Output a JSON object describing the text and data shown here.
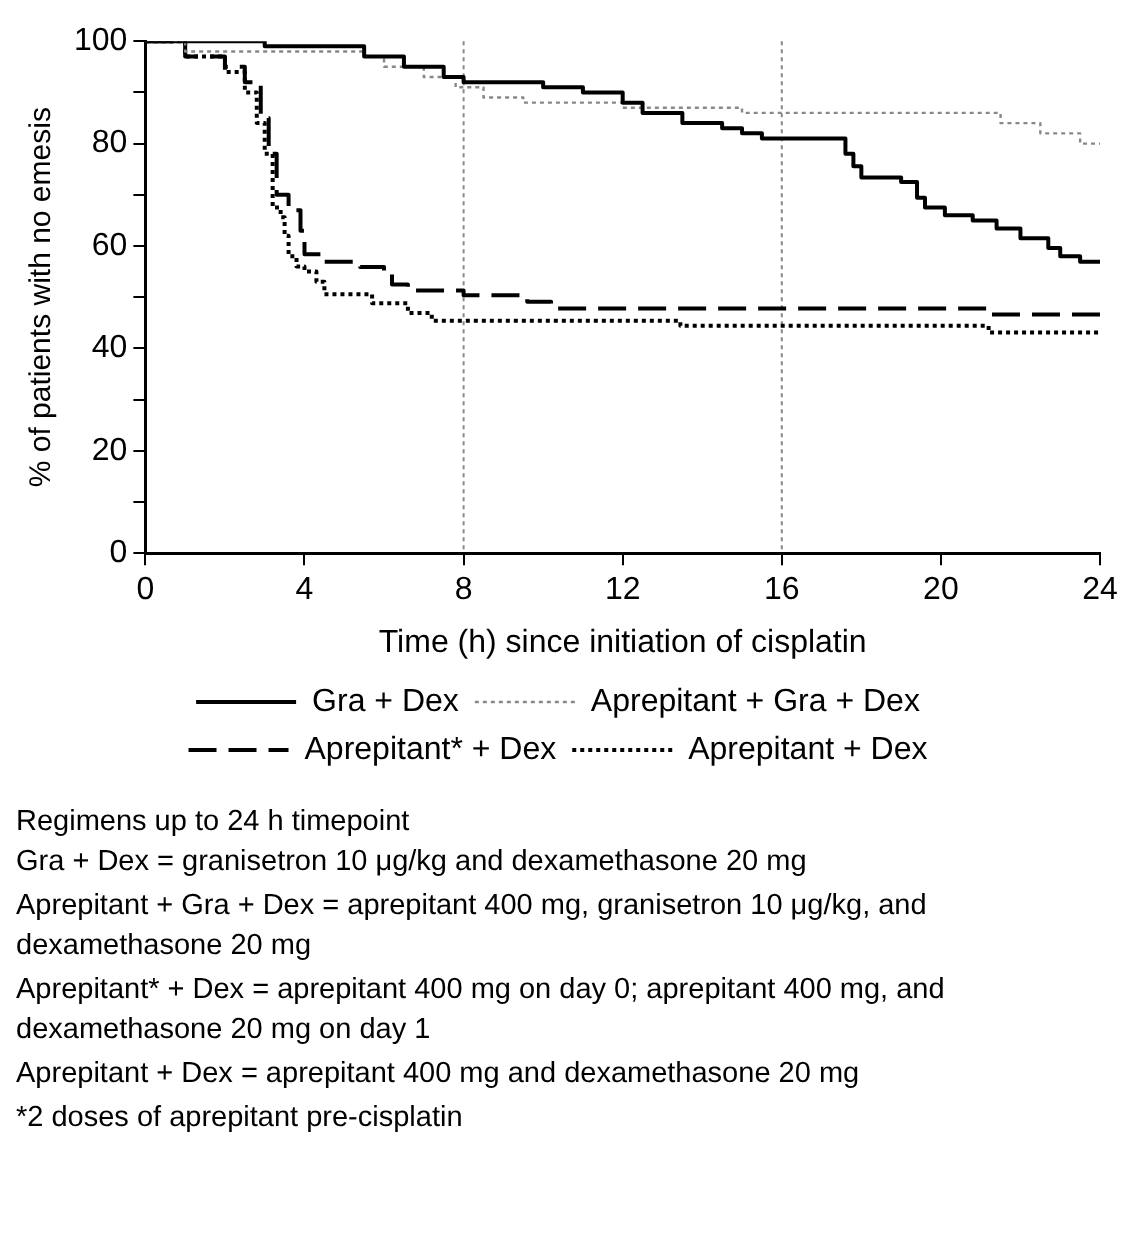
{
  "chart_data": {
    "type": "step",
    "xlabel": "Time (h) since initiation of cisplatin",
    "ylabel": "% of patients with no emesis",
    "xlim": [
      0,
      24
    ],
    "xticks": [
      0,
      4,
      8,
      12,
      16,
      20,
      24
    ],
    "ylim": [
      0,
      100
    ],
    "yticks": [
      0,
      {
        "value": 10,
        "label": null
      },
      20,
      {
        "value": 30,
        "label": null
      },
      40,
      {
        "value": 50,
        "label": null
      },
      60,
      {
        "value": 70,
        "label": null
      },
      80,
      {
        "value": 90,
        "label": null
      },
      100
    ],
    "legend": "bottom",
    "ref_lines": [
      {
        "axis": "x",
        "value": 8,
        "color": "#888888",
        "line_style": "dotted"
      },
      {
        "axis": "x",
        "value": 16,
        "color": "#888888",
        "line_style": "dotted"
      }
    ],
    "series": [
      {
        "name": "Gra + Dex",
        "color": "#000000",
        "line_style": "solid",
        "x": [
          0,
          3,
          5.5,
          6.5,
          7.5,
          8,
          10,
          11,
          12,
          12.5,
          13.5,
          14.5,
          15,
          15.5,
          17.6,
          17.8,
          18,
          19,
          19.4,
          19.6,
          20.1,
          20.8,
          21.4,
          22,
          22.7,
          23,
          23.5,
          24
        ],
        "values": [
          100,
          99,
          97,
          95,
          93,
          92,
          91,
          90,
          88,
          86,
          84,
          83,
          82,
          81,
          78,
          75.6,
          73.4,
          72.5,
          69.4,
          67.5,
          66,
          65,
          63.4,
          61.5,
          59.6,
          58,
          56.9,
          56.9
        ]
      },
      {
        "name": "Aprepitant + Gra + Dex",
        "color": "#888888",
        "line_style": "dotted",
        "x": [
          0,
          1,
          5.5,
          6,
          7,
          7.8,
          8.5,
          9.5,
          12,
          15,
          21,
          21.5,
          22.5,
          23.5,
          24
        ],
        "values": [
          100,
          98,
          97,
          95,
          93,
          91,
          89,
          88,
          87,
          86,
          86,
          84,
          82,
          80,
          80
        ]
      },
      {
        "name": "Aprepitant* + Dex",
        "color": "#000000",
        "line_style": "dashed",
        "x": [
          0,
          1,
          2,
          2.5,
          2.9,
          3.1,
          3.3,
          3.6,
          3.9,
          4,
          4.5,
          5.4,
          6,
          6.2,
          6.6,
          8,
          9.6,
          10.2,
          21.2,
          24
        ],
        "values": [
          100,
          97,
          95,
          92,
          85,
          78,
          70,
          67,
          63,
          58.4,
          56.9,
          55.9,
          54.6,
          52.5,
          51.3,
          50.4,
          49.1,
          47.8,
          46.6,
          46.6
        ]
      },
      {
        "name": "Aprepitant + Dex",
        "color": "#000000",
        "line_style": "dotted",
        "x": [
          0,
          1,
          2,
          2.5,
          2.8,
          3,
          3.2,
          3.4,
          3.5,
          3.6,
          3.8,
          4,
          4.3,
          4.5,
          5.7,
          6.6,
          7.2,
          13.45,
          21.2,
          24
        ],
        "values": [
          100,
          97,
          94,
          90,
          84,
          78,
          67.5,
          65.6,
          62,
          58,
          56,
          55,
          53,
          50.6,
          48.8,
          46.9,
          45.4,
          44.4,
          43.1,
          43.1
        ]
      }
    ],
    "annotations": [
      "Regimens up to 24 h timepoint",
      "Gra + Dex = granisetron 10 μg/kg and dexamethasone 20 mg",
      "Aprepitant + Gra + Dex = aprepitant 400 mg, granisetron 10 μg/kg, and dexamethasone 20 mg",
      "Aprepitant* + Dex = aprepitant 400 mg on day 0; aprepitant 400 mg, and dexamethasone 20 mg on day 1",
      "Aprepitant + Dex = aprepitant 400 mg and dexamethasone 20 mg",
      "*2 doses of aprepitant pre-cisplatin"
    ]
  }
}
